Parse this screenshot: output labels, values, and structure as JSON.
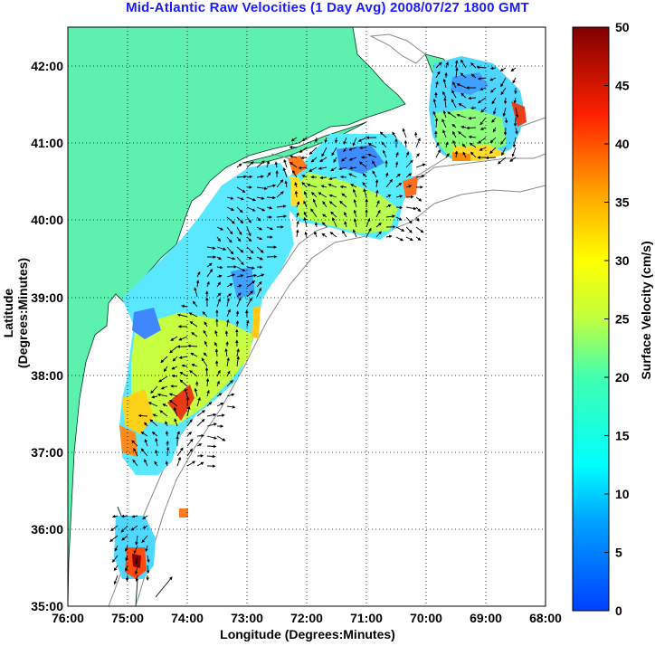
{
  "title": "Mid-Atlantic Raw Velocities (1 Day Avg) 2008/07/27 1800 GMT",
  "x_axis_label": "Longitude (Degrees:Minutes)",
  "y_axis_label": "Latitude (Degrees:Minutes)",
  "colorbar_label": "Surface Velocity (cm/s)",
  "x_ticks": [
    "76:00",
    "75:00",
    "74:00",
    "73:00",
    "72:00",
    "71:00",
    "70:00",
    "69:00",
    "68:00"
  ],
  "y_ticks": [
    "42:00",
    "41:00",
    "40:00",
    "39:00",
    "38:00",
    "37:00",
    "36:00",
    "35:00"
  ],
  "colorbar_ticks": [
    "50",
    "45",
    "40",
    "35",
    "30",
    "25",
    "20",
    "15",
    "10",
    "5",
    "0"
  ],
  "colors": {
    "land": "#5df0ae",
    "title": "#1a1aff",
    "grid": "#000000"
  },
  "chart_data": {
    "type": "heatmap",
    "xlim": [
      -76,
      -68
    ],
    "ylim": [
      35,
      42.5
    ],
    "clim": [
      0,
      50
    ],
    "colormap": "jet"
  }
}
